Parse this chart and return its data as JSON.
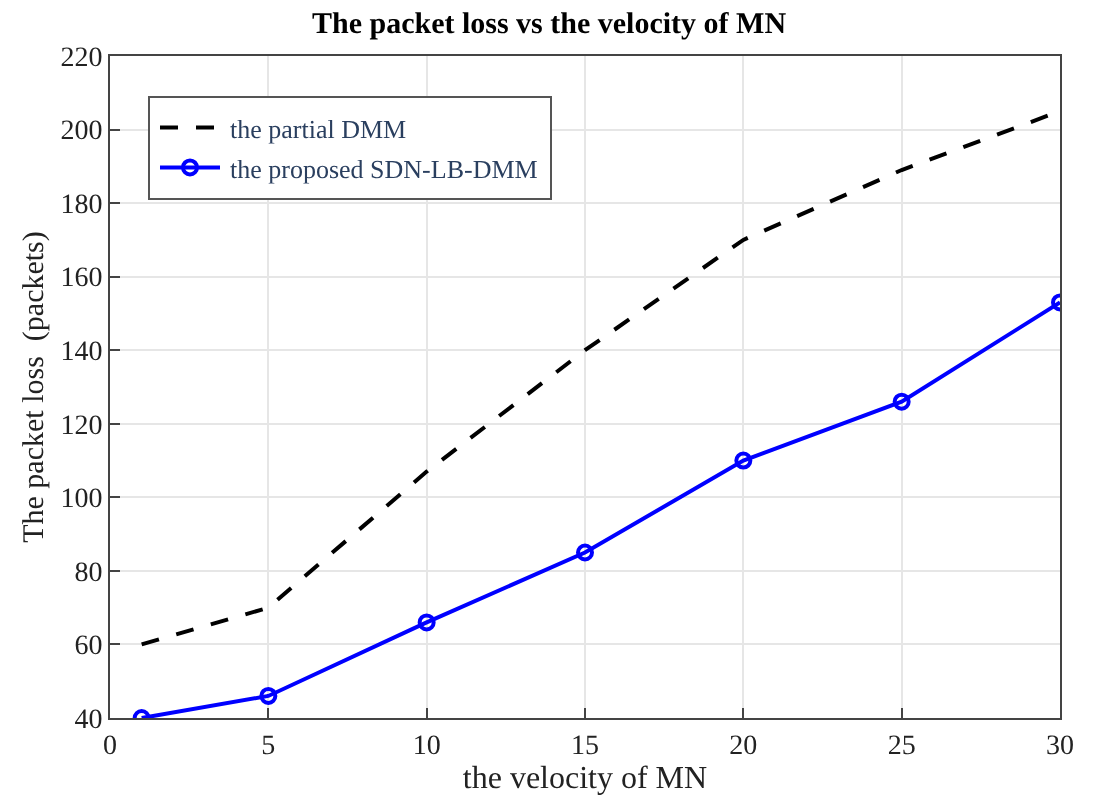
{
  "chart_data": {
    "type": "line",
    "title": "The packet loss vs the velocity of MN",
    "xlabel": "the velocity of MN",
    "ylabel": "The packet loss  (packets)",
    "x": [
      1,
      5,
      10,
      15,
      20,
      25,
      30
    ],
    "series": [
      {
        "name": "the partial DMM",
        "color": "#000000",
        "line_style": "dashed",
        "marker": "none",
        "values": [
          60,
          70,
          107,
          140,
          170,
          189,
          205
        ]
      },
      {
        "name": "the proposed SDN-LB-DMM",
        "color": "#0000ff",
        "line_style": "solid",
        "marker": "circle",
        "values": [
          40,
          46,
          66,
          85,
          110,
          126,
          153
        ]
      }
    ],
    "xlim": [
      0,
      30
    ],
    "xticks": [
      0,
      5,
      10,
      15,
      20,
      25,
      30
    ],
    "ylim": [
      40,
      220
    ],
    "yticks": [
      40,
      60,
      80,
      100,
      120,
      140,
      160,
      180,
      200,
      220
    ],
    "grid": true,
    "legend": "top left"
  }
}
